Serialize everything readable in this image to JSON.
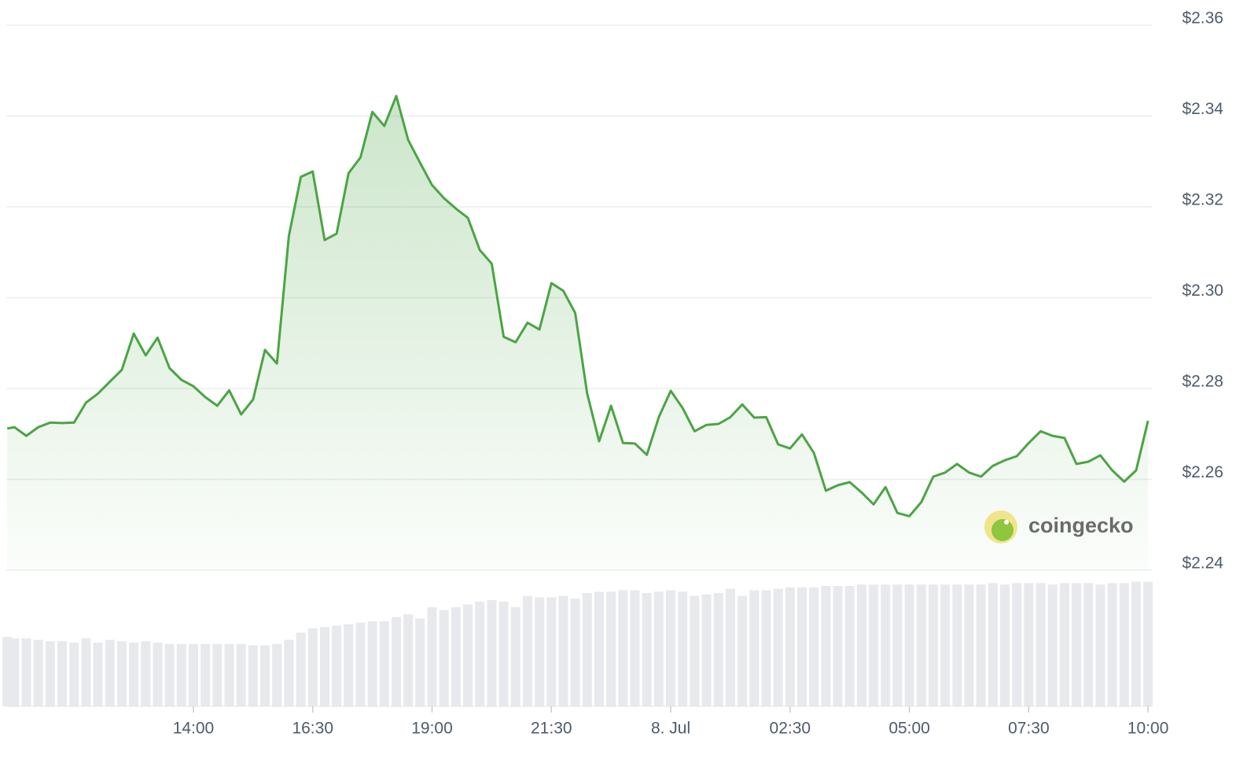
{
  "chart_data": {
    "type": "line",
    "watermark": "coingecko",
    "x": [
      10.1,
      10.25,
      10.5,
      10.75,
      11,
      11.25,
      11.5,
      11.75,
      12,
      12.25,
      12.5,
      12.75,
      13,
      13.25,
      13.5,
      13.75,
      14,
      14.25,
      14.5,
      14.75,
      15,
      15.25,
      15.5,
      15.75,
      16,
      16.25,
      16.5,
      16.75,
      17,
      17.25,
      17.5,
      17.75,
      18,
      18.25,
      18.5,
      18.75,
      19,
      19.25,
      19.5,
      19.75,
      20,
      20.25,
      20.5,
      20.75,
      21,
      21.25,
      21.5,
      21.75,
      22,
      22.25,
      22.5,
      22.75,
      23,
      23.25,
      23.5,
      23.75,
      24,
      24.25,
      24.5,
      24.75,
      25,
      25.25,
      25.5,
      25.75,
      26,
      26.25,
      26.5,
      26.75,
      27,
      27.25,
      27.5,
      27.75,
      28,
      28.25,
      28.5,
      28.75,
      29,
      29.25,
      29.5,
      29.75,
      30,
      30.25,
      30.5,
      30.75,
      31,
      31.25,
      31.5,
      31.75,
      32,
      32.25,
      32.5,
      32.75,
      33,
      33.25,
      33.5,
      33.75,
      34
    ],
    "series": [
      {
        "color": "#4aa543",
        "values": [
          2.2712,
          2.2715,
          2.2696,
          2.2715,
          2.2725,
          2.2724,
          2.2725,
          2.2769,
          2.2789,
          2.2815,
          2.2841,
          2.2921,
          2.2873,
          2.2912,
          2.2845,
          2.2819,
          2.2805,
          2.2781,
          2.2762,
          2.2796,
          2.2743,
          2.2776,
          2.2885,
          2.2855,
          2.3136,
          2.3266,
          2.3278,
          2.3127,
          2.3141,
          2.3274,
          2.3309,
          2.3409,
          2.3378,
          2.3444,
          2.3347,
          2.3297,
          2.3248,
          2.3219,
          2.3196,
          2.3176,
          2.3105,
          2.3075,
          2.2914,
          2.2902,
          2.2945,
          2.293,
          2.3032,
          2.3015,
          2.2966,
          2.2789,
          2.2684,
          2.2762,
          2.268,
          2.2679,
          2.2654,
          2.2737,
          2.2795,
          2.2757,
          2.2706,
          2.272,
          2.2722,
          2.2737,
          2.2765,
          2.2736,
          2.2737,
          2.2677,
          2.2668,
          2.2699,
          2.2658,
          2.2575,
          2.2587,
          2.2594,
          2.2571,
          2.2545,
          2.2583,
          2.2526,
          2.2519,
          2.255,
          2.2606,
          2.2615,
          2.2634,
          2.2615,
          2.2606,
          2.263,
          2.2642,
          2.2651,
          2.268,
          2.2706,
          2.2696,
          2.2691,
          2.2634,
          2.2639,
          2.2653,
          2.262,
          2.2595,
          2.262,
          2.2729
        ]
      },
      {
        "color": "#e8e9ec",
        "axis": "y2",
        "values": [
          49,
          48,
          48,
          47,
          46,
          46,
          45,
          48,
          45,
          47,
          46,
          45,
          46,
          45,
          44,
          44,
          44,
          44,
          44,
          44,
          44,
          43,
          43,
          44,
          47,
          52,
          55,
          56,
          57,
          58,
          59,
          60,
          60,
          63,
          65,
          62,
          70,
          68,
          70,
          72,
          74,
          75,
          74,
          70,
          78,
          77,
          77,
          78,
          76,
          80,
          81,
          81,
          82,
          82,
          80,
          81,
          82,
          81,
          78,
          79,
          80,
          83,
          78,
          82,
          82,
          83,
          84,
          84,
          84,
          85,
          85,
          85,
          86,
          86,
          86,
          86,
          86,
          86,
          86,
          86,
          86,
          86,
          86,
          87,
          86,
          87,
          87,
          87,
          86,
          87,
          87,
          87,
          86,
          87,
          87,
          88,
          88
        ]
      }
    ],
    "xlim": [
      10.08,
      34.08
    ],
    "xticks": [
      {
        "value": 14,
        "label": "14:00"
      },
      {
        "value": 16.5,
        "label": "16:30"
      },
      {
        "value": 19,
        "label": "19:00"
      },
      {
        "value": 21.5,
        "label": "21:30"
      },
      {
        "value": 24,
        "label": "8. Jul"
      },
      {
        "value": 26.5,
        "label": "02:30"
      },
      {
        "value": 29,
        "label": "05:00"
      },
      {
        "value": 31.5,
        "label": "07:30"
      },
      {
        "value": 34,
        "label": "10:00"
      }
    ],
    "ylim": [
      2.24,
      2.36
    ],
    "yticks": [
      {
        "value": 2.24,
        "label": "$2.24"
      },
      {
        "value": 2.26,
        "label": "$2.26"
      },
      {
        "value": 2.28,
        "label": "$2.28"
      },
      {
        "value": 2.3,
        "label": "$2.30"
      },
      {
        "value": 2.32,
        "label": "$2.32"
      },
      {
        "value": 2.34,
        "label": "$2.34"
      },
      {
        "value": 2.36,
        "label": "$2.36"
      }
    ],
    "y2lim": [
      0,
      100
    ],
    "grid": true
  }
}
